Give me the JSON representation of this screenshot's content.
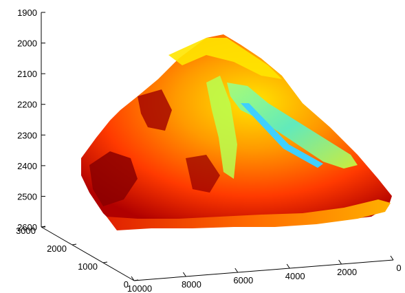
{
  "chart_data": {
    "type": "surface3d",
    "title": "",
    "xlabel": "",
    "ylabel": "",
    "zlabel": "",
    "colormap": "jet",
    "grid": false,
    "z_axis": {
      "direction": "reversed",
      "lim": [
        1900,
        2600
      ],
      "ticks": [
        "1900",
        "2000",
        "2100",
        "2200",
        "2300",
        "2400",
        "2500",
        "2600"
      ]
    },
    "x_axis": {
      "lim": [
        0,
        10000
      ],
      "ticks": [
        "10000",
        "8000",
        "6000",
        "4000",
        "2000",
        "0"
      ]
    },
    "y_axis": {
      "lim": [
        0,
        3000
      ],
      "ticks": [
        "3000",
        "2000",
        "1000",
        "0"
      ]
    },
    "surface": {
      "description_colors": [
        "#8b0000",
        "#cc1000",
        "#ff3000",
        "#ff7000",
        "#ffb000",
        "#ffe600",
        "#c8ff40",
        "#60ffc0",
        "#40e0ff",
        "#0060ff"
      ],
      "peak_color": "#ffe600",
      "base_color": "#e03000"
    }
  }
}
